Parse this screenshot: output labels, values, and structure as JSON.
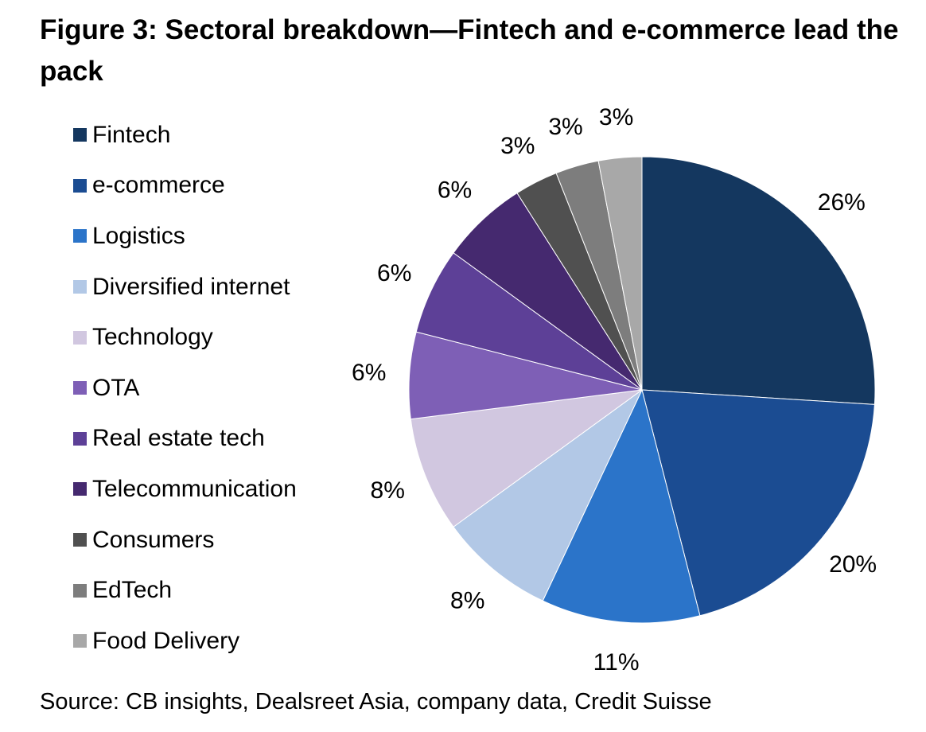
{
  "title": "Figure 3: Sectoral breakdown—Fintech and e-commerce lead the pack",
  "source": "Source: CB insights, Dealsreet Asia, company data, Credit Suisse",
  "chart_data": {
    "type": "pie",
    "title": "Figure 3: Sectoral breakdown—Fintech and e-commerce lead the pack",
    "legend_position": "left",
    "start_angle": "12 o'clock",
    "direction": "clockwise",
    "slices": [
      {
        "name": "Fintech",
        "value": 26,
        "label": "26%",
        "color": "#14375f"
      },
      {
        "name": "e-commerce",
        "value": 20,
        "label": "20%",
        "color": "#1b4c92"
      },
      {
        "name": "Logistics",
        "value": 11,
        "label": "11%",
        "color": "#2b74c9"
      },
      {
        "name": "Diversified internet",
        "value": 8,
        "label": "8%",
        "color": "#b2c8e6"
      },
      {
        "name": "Technology",
        "value": 8,
        "label": "8%",
        "color": "#d1c7e0"
      },
      {
        "name": "OTA",
        "value": 6,
        "label": "6%",
        "color": "#7e5fb6"
      },
      {
        "name": "Real estate tech",
        "value": 6,
        "label": "6%",
        "color": "#5d4097"
      },
      {
        "name": "Telecommunication",
        "value": 6,
        "label": "6%",
        "color": "#45296f"
      },
      {
        "name": "Consumers",
        "value": 3,
        "label": "3%",
        "color": "#505050"
      },
      {
        "name": "EdTech",
        "value": 3,
        "label": "3%",
        "color": "#7d7d7d"
      },
      {
        "name": "Food Delivery",
        "value": 3,
        "label": "3%",
        "color": "#a8a8a8"
      }
    ]
  }
}
